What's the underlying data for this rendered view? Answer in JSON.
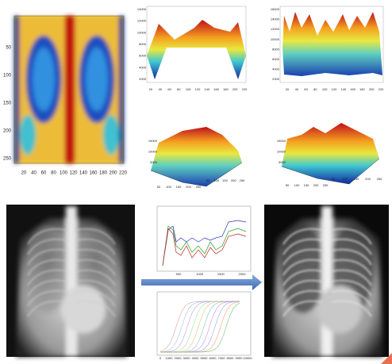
{
  "figure": {
    "heatmap": {
      "xticks": [
        "20",
        "40",
        "60",
        "80",
        "100",
        "120",
        "140",
        "160",
        "180",
        "200",
        "220"
      ],
      "yticks": [
        "50",
        "100",
        "150",
        "200",
        "250"
      ]
    },
    "surface_top_left": {
      "xticks": [
        "20",
        "40",
        "60",
        "80",
        "100",
        "120",
        "140",
        "160",
        "180",
        "200",
        "220"
      ],
      "zticks": [
        "14000",
        "12000",
        "10000",
        "8000",
        "6000",
        "4000",
        "2000"
      ]
    },
    "surface_top_right": {
      "xticks": [
        "20",
        "40",
        "60",
        "80",
        "100",
        "120",
        "140",
        "160",
        "180",
        "200",
        "220"
      ],
      "zticks": [
        "16000",
        "14000",
        "12000",
        "10000",
        "8000",
        "6000",
        "4000",
        "2000"
      ]
    },
    "surface_3d_left": {
      "zticks": [
        "15000",
        "10000",
        "5000"
      ],
      "xticks": [
        "50",
        "100",
        "150",
        "200",
        "250"
      ],
      "yticks": [
        "50",
        "100",
        "150",
        "200"
      ]
    },
    "surface_3d_right": {
      "zticks": [
        "15000",
        "10000",
        "5000"
      ],
      "xticks": [
        "50",
        "100",
        "150",
        "200",
        "250"
      ],
      "yticks": [
        "50",
        "100",
        "150",
        "200"
      ]
    },
    "profile_chart": {
      "xticks": [
        "500",
        "1000",
        "1500",
        "2000"
      ]
    },
    "curve_chart": {
      "xticks": [
        "0",
        "1000",
        "2000",
        "3000",
        "4000",
        "5000",
        "6000",
        "7000",
        "8000",
        "9000",
        "10000"
      ]
    }
  }
}
